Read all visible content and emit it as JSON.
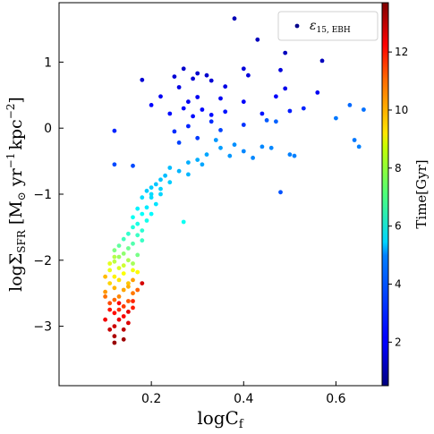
{
  "chart_data": {
    "type": "scatter",
    "xlabel_base": "logC",
    "xlabel_sub": "f",
    "ylabel_base": "logΣ",
    "ylabel_sub": "SFR",
    "ylabel_units": "[M",
    "ylabel_units_sub": "⊙",
    "ylabel_units_rest": " yr",
    "ylabel_exp1": "−1",
    "ylabel_kpc": "kpc",
    "ylabel_exp2": "−2",
    "ylabel_close": "]",
    "xlim": [
      0.0,
      0.7
    ],
    "ylim": [
      -3.9,
      1.9
    ],
    "xticks": [
      0.2,
      0.4,
      0.6
    ],
    "xtick_labels": [
      "0.2",
      "0.4",
      "0.6"
    ],
    "yticks": [
      -3,
      -2,
      -1,
      0,
      1
    ],
    "ytick_labels": [
      "−3",
      "−2",
      "−1",
      "0",
      "1"
    ],
    "grid": false,
    "legend": {
      "placement": "top-right",
      "label_base": "ε",
      "label_sub": "15, EBH",
      "color": "#00008b"
    },
    "colorbar": {
      "label": "Time[Gyr]",
      "range": [
        0.5,
        13.7
      ],
      "ticks": [
        2,
        4,
        6,
        8,
        10,
        12
      ],
      "tick_labels": [
        "2",
        "4",
        "6",
        "8",
        "10",
        "12"
      ],
      "colormap": "jet"
    },
    "series": [
      {
        "name": "ε15, EBH",
        "points": [
          [
            0.38,
            1.66,
            1.2
          ],
          [
            0.52,
            1.58,
            1.2
          ],
          [
            0.43,
            1.34,
            1.3
          ],
          [
            0.49,
            1.14,
            1.3
          ],
          [
            0.57,
            1.02,
            1.3
          ],
          [
            0.27,
            0.9,
            1.5
          ],
          [
            0.3,
            0.83,
            1.5
          ],
          [
            0.32,
            0.8,
            1.5
          ],
          [
            0.25,
            0.78,
            1.6
          ],
          [
            0.29,
            0.75,
            1.6
          ],
          [
            0.18,
            0.73,
            1.6
          ],
          [
            0.33,
            0.72,
            1.6
          ],
          [
            0.4,
            0.9,
            1.7
          ],
          [
            0.48,
            0.88,
            1.7
          ],
          [
            0.41,
            0.8,
            1.7
          ],
          [
            0.26,
            0.62,
            1.8
          ],
          [
            0.36,
            0.63,
            1.8
          ],
          [
            0.49,
            0.6,
            1.9
          ],
          [
            0.56,
            0.54,
            2.0
          ],
          [
            0.22,
            0.48,
            2.0
          ],
          [
            0.3,
            0.47,
            2.0
          ],
          [
            0.35,
            0.45,
            2.0
          ],
          [
            0.28,
            0.4,
            2.0
          ],
          [
            0.4,
            0.4,
            2.1
          ],
          [
            0.47,
            0.48,
            2.1
          ],
          [
            0.27,
            0.3,
            2.2
          ],
          [
            0.2,
            0.35,
            2.2
          ],
          [
            0.31,
            0.28,
            2.2
          ],
          [
            0.24,
            0.22,
            2.3
          ],
          [
            0.29,
            0.18,
            2.3
          ],
          [
            0.33,
            0.2,
            2.3
          ],
          [
            0.36,
            0.25,
            2.4
          ],
          [
            0.44,
            0.22,
            2.4
          ],
          [
            0.5,
            0.26,
            2.5
          ],
          [
            0.53,
            0.3,
            2.6
          ],
          [
            0.12,
            -0.04,
            2.6
          ],
          [
            0.28,
            0.03,
            2.6
          ],
          [
            0.25,
            -0.05,
            2.7
          ],
          [
            0.33,
            0.1,
            2.7
          ],
          [
            0.4,
            0.05,
            2.8
          ],
          [
            0.3,
            -0.15,
            2.9
          ],
          [
            0.26,
            -0.22,
            3.0
          ],
          [
            0.35,
            -0.03,
            3.0
          ],
          [
            0.16,
            -0.57,
            3.1
          ],
          [
            0.12,
            -0.55,
            3.1
          ],
          [
            0.48,
            -0.97,
            3.2
          ],
          [
            0.45,
            0.12,
            3.3
          ],
          [
            0.47,
            0.1,
            3.4
          ],
          [
            0.63,
            0.35,
            3.5
          ],
          [
            0.66,
            0.28,
            3.6
          ],
          [
            0.6,
            0.15,
            3.7
          ],
          [
            0.64,
            -0.18,
            3.7
          ],
          [
            0.65,
            -0.28,
            3.8
          ],
          [
            0.5,
            -0.4,
            3.8
          ],
          [
            0.46,
            -0.3,
            3.9
          ],
          [
            0.42,
            -0.45,
            3.9
          ],
          [
            0.38,
            -0.25,
            4.0
          ],
          [
            0.34,
            -0.18,
            4.1
          ],
          [
            0.35,
            -0.3,
            4.2
          ],
          [
            0.32,
            -0.4,
            4.3
          ],
          [
            0.3,
            -0.48,
            4.4
          ],
          [
            0.28,
            -0.52,
            4.4
          ],
          [
            0.26,
            -0.65,
            4.5
          ],
          [
            0.24,
            -0.6,
            4.6
          ],
          [
            0.23,
            -0.72,
            4.6
          ],
          [
            0.22,
            -0.78,
            4.7
          ],
          [
            0.21,
            -0.85,
            4.7
          ],
          [
            0.2,
            -0.9,
            4.8
          ],
          [
            0.19,
            -0.95,
            4.8
          ],
          [
            0.22,
            -1.0,
            4.9
          ],
          [
            0.2,
            -1.05,
            5.0
          ],
          [
            0.18,
            -1.05,
            5.0
          ],
          [
            0.21,
            -1.15,
            5.1
          ],
          [
            0.19,
            -1.2,
            5.2
          ],
          [
            0.17,
            -1.22,
            5.3
          ],
          [
            0.2,
            -1.3,
            5.4
          ],
          [
            0.18,
            -1.3,
            5.5
          ],
          [
            0.16,
            -1.35,
            5.6
          ],
          [
            0.19,
            -1.4,
            5.7
          ],
          [
            0.17,
            -1.45,
            5.8
          ],
          [
            0.16,
            -1.5,
            5.9
          ],
          [
            0.18,
            -1.55,
            6.0
          ],
          [
            0.15,
            -1.6,
            6.1
          ],
          [
            0.17,
            -1.62,
            6.2
          ],
          [
            0.14,
            -1.68,
            6.3
          ],
          [
            0.16,
            -1.75,
            6.5
          ],
          [
            0.13,
            -1.78,
            6.7
          ],
          [
            0.15,
            -1.82,
            6.9
          ],
          [
            0.12,
            -1.85,
            7.1
          ],
          [
            0.14,
            -1.9,
            7.3
          ],
          [
            0.13,
            -1.95,
            7.5
          ],
          [
            0.15,
            -2.0,
            7.7
          ],
          [
            0.12,
            -2.02,
            7.9
          ],
          [
            0.14,
            -2.08,
            8.1
          ],
          [
            0.13,
            -2.12,
            8.3
          ],
          [
            0.11,
            -2.15,
            8.5
          ],
          [
            0.14,
            -2.2,
            8.7
          ],
          [
            0.12,
            -2.25,
            8.9
          ],
          [
            0.13,
            -2.3,
            9.1
          ],
          [
            0.11,
            -2.35,
            9.3
          ],
          [
            0.15,
            -2.35,
            9.5
          ],
          [
            0.12,
            -2.42,
            9.7
          ],
          [
            0.14,
            -2.45,
            9.9
          ],
          [
            0.1,
            -2.48,
            10.1
          ],
          [
            0.13,
            -2.55,
            10.3
          ],
          [
            0.16,
            -2.5,
            10.5
          ],
          [
            0.12,
            -2.6,
            10.7
          ],
          [
            0.15,
            -2.62,
            10.9
          ],
          [
            0.11,
            -2.65,
            11.1
          ],
          [
            0.14,
            -2.7,
            11.3
          ],
          [
            0.13,
            -2.75,
            11.5
          ],
          [
            0.16,
            -2.72,
            11.7
          ],
          [
            0.12,
            -2.8,
            11.9
          ],
          [
            0.14,
            -2.85,
            12.1
          ],
          [
            0.13,
            -2.9,
            12.3
          ],
          [
            0.15,
            -2.95,
            12.5
          ],
          [
            0.12,
            -3.0,
            12.7
          ],
          [
            0.14,
            -3.05,
            12.9
          ],
          [
            0.12,
            -3.15,
            13.1
          ],
          [
            0.12,
            -3.25,
            13.4
          ],
          [
            0.2,
            -1.0,
            5.0
          ],
          [
            0.22,
            -0.92,
            4.9
          ],
          [
            0.24,
            -0.82,
            4.8
          ],
          [
            0.27,
            -1.42,
            5.6
          ],
          [
            0.28,
            -0.7,
            4.5
          ],
          [
            0.31,
            -0.55,
            4.3
          ],
          [
            0.37,
            -0.42,
            4.1
          ],
          [
            0.4,
            -0.35,
            3.9
          ],
          [
            0.44,
            -0.28,
            3.9
          ],
          [
            0.51,
            -0.42,
            3.8
          ],
          [
            0.18,
            -1.7,
            6.2
          ],
          [
            0.17,
            -1.92,
            7.0
          ],
          [
            0.16,
            -2.05,
            7.6
          ],
          [
            0.17,
            -2.18,
            8.8
          ],
          [
            0.16,
            -2.3,
            10.0
          ],
          [
            0.17,
            -2.45,
            10.8
          ],
          [
            0.16,
            -2.62,
            11.6
          ],
          [
            0.15,
            -2.78,
            12.4
          ],
          [
            0.18,
            -2.35,
            12.6
          ],
          [
            0.14,
            -3.2,
            13.3
          ],
          [
            0.12,
            -1.95,
            7.8
          ],
          [
            0.11,
            -2.05,
            8.4
          ],
          [
            0.1,
            -2.25,
            9.6
          ],
          [
            0.1,
            -2.55,
            10.6
          ],
          [
            0.11,
            -2.75,
            11.8
          ],
          [
            0.1,
            -2.9,
            12.2
          ],
          [
            0.11,
            -3.05,
            12.8
          ],
          [
            0.13,
            -2.65,
            12.0
          ],
          [
            0.15,
            -2.4,
            9.8
          ],
          [
            0.16,
            -2.15,
            8.6
          ]
        ]
      }
    ]
  }
}
